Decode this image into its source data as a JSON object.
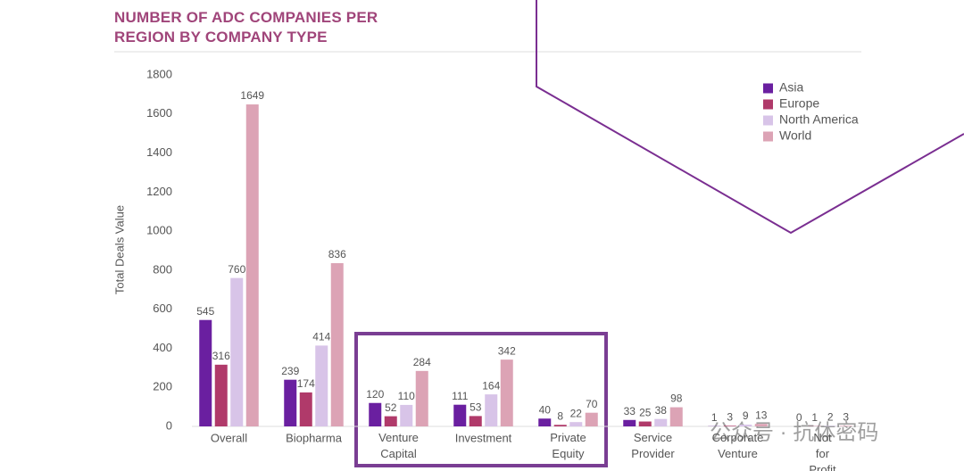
{
  "chart_data": {
    "type": "bar",
    "title": "NUMBER OF ADC COMPANIES PER REGION BY COMPANY TYPE",
    "y_label": "Total Deals Value",
    "categories": [
      "Overall",
      "Biopharma",
      "Venture Capital",
      "Investment",
      "Private Equity",
      "Service Provider",
      "Corporate Venture",
      "Not for Profit"
    ],
    "series": [
      {
        "name": "Asia",
        "color": "#6a1fa0",
        "values": [
          545,
          239,
          120,
          111,
          40,
          33,
          1,
          0
        ]
      },
      {
        "name": "Europe",
        "color": "#b03a6a",
        "values": [
          316,
          174,
          52,
          53,
          8,
          25,
          3,
          1
        ]
      },
      {
        "name": "North America",
        "color": "#d8c4e8",
        "values": [
          760,
          414,
          110,
          164,
          22,
          38,
          9,
          2
        ]
      },
      {
        "name": "World",
        "color": "#dca3b5",
        "values": [
          1649,
          836,
          284,
          342,
          70,
          98,
          13,
          3
        ]
      }
    ],
    "ylim": [
      0,
      1800
    ],
    "yticks": [
      0,
      200,
      400,
      600,
      800,
      1000,
      1200,
      1400,
      1600,
      1800
    ],
    "grid": false,
    "legend": "top-right",
    "watermark": "公众号 · 抗体密码"
  }
}
